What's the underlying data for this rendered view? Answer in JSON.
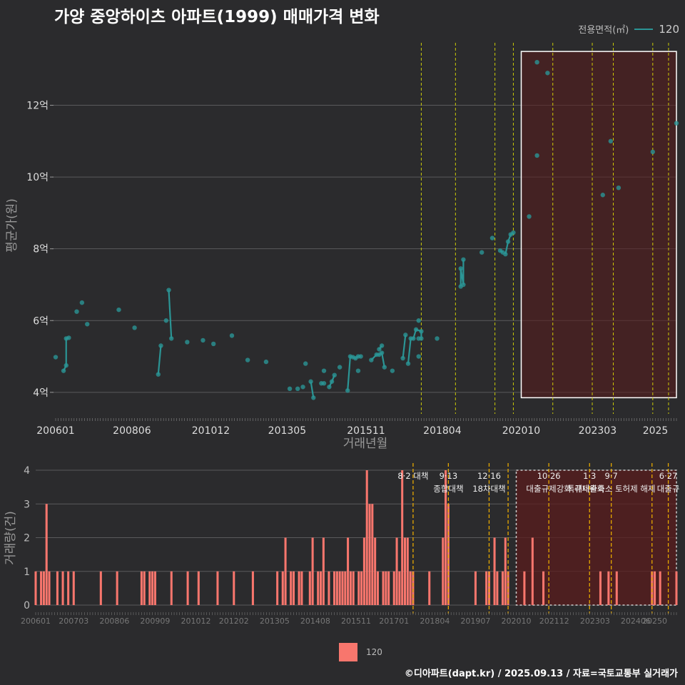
{
  "title": "가양 중앙하이츠 아파트(1999) 매매가격 변화",
  "legend": {
    "label": "전용면적(㎡)",
    "value": "120",
    "line_color": "#2b9595",
    "bar_color": "#f8766d"
  },
  "footer": "©디아파트(dapt.kr) / 2025.09.13 / 자료=국토교통부 실거래가",
  "colors": {
    "background": "#2b2b2d",
    "line": "#2b9595",
    "bar": "#f8766d",
    "policy_line": "#e6e600",
    "highlight_fill": "#5a1c1c"
  },
  "chart_data": [
    {
      "type": "line",
      "title": "가양 중앙하이츠 아파트(1999) 매매가격 변화",
      "xlabel": "거래년월",
      "ylabel": "평균가(원)",
      "x_domain": [
        "2006-01",
        "2025-09"
      ],
      "ylim": [
        3.4,
        13.9
      ],
      "x_ticks": [
        "200601",
        "200806",
        "201012",
        "201305",
        "201511",
        "201804",
        "202010",
        "202303",
        "2025"
      ],
      "y_ticks": [
        {
          "v": 4,
          "label": "4억"
        },
        {
          "v": 6,
          "label": "6억"
        },
        {
          "v": 8,
          "label": "8억"
        },
        {
          "v": 10,
          "label": "10억"
        },
        {
          "v": 12,
          "label": "12억"
        }
      ],
      "highlight_range": [
        "2020-10",
        "2025-09"
      ],
      "highlight_y": [
        3.85,
        13.5
      ],
      "policy_lines": [
        "2017-08",
        "2018-09",
        "2019-12",
        "2020-07",
        "2021-10",
        "2023-01",
        "2023-09",
        "2024-12",
        "2025-06"
      ],
      "segments": [
        [
          [
            "2006-01",
            4.98
          ]
        ],
        [
          [
            "2006-04",
            4.6
          ],
          [
            "2006-05",
            4.75
          ],
          [
            "2006-05",
            5.5
          ],
          [
            "2006-06",
            5.52
          ]
        ],
        [
          [
            "2006-09",
            6.25
          ]
        ],
        [
          [
            "2006-11",
            6.5
          ]
        ],
        [
          [
            "2007-01",
            5.9
          ]
        ],
        [
          [
            "2008-01",
            6.3
          ]
        ],
        [
          [
            "2008-07",
            5.8
          ]
        ],
        [
          [
            "2009-04",
            4.5
          ],
          [
            "2009-05",
            5.3
          ]
        ],
        [
          [
            "2009-07",
            6.0
          ]
        ],
        [
          [
            "2009-08",
            6.85
          ],
          [
            "2009-09",
            5.5
          ]
        ],
        [
          [
            "2010-03",
            5.4
          ]
        ],
        [
          [
            "2010-09",
            5.45
          ]
        ],
        [
          [
            "2011-01",
            5.35
          ]
        ],
        [
          [
            "2011-08",
            5.58
          ]
        ],
        [
          [
            "2012-02",
            4.9
          ]
        ],
        [
          [
            "2012-09",
            4.85
          ]
        ],
        [
          [
            "2013-06",
            4.1
          ]
        ],
        [
          [
            "2013-09",
            4.1
          ]
        ],
        [
          [
            "2013-11",
            4.15
          ]
        ],
        [
          [
            "2013-12",
            4.8
          ]
        ],
        [
          [
            "2014-02",
            4.3
          ],
          [
            "2014-03",
            3.85
          ]
        ],
        [
          [
            "2014-06",
            4.25
          ],
          [
            "2014-07",
            4.25
          ]
        ],
        [
          [
            "2014-07",
            4.6
          ]
        ],
        [
          [
            "2014-09",
            4.15
          ],
          [
            "2014-10",
            4.3
          ],
          [
            "2014-11",
            4.48
          ]
        ],
        [
          [
            "2015-01",
            4.7
          ]
        ],
        [
          [
            "2015-04",
            4.05
          ],
          [
            "2015-05",
            5.0
          ],
          [
            "2015-06",
            4.98
          ],
          [
            "2015-07",
            4.95
          ],
          [
            "2015-08",
            5.0
          ],
          [
            "2015-09",
            5.0
          ]
        ],
        [
          [
            "2015-08",
            4.6
          ]
        ],
        [
          [
            "2016-01",
            4.9
          ],
          [
            "2016-03",
            5.05
          ],
          [
            "2016-04",
            5.05
          ],
          [
            "2016-05",
            5.1
          ],
          [
            "2016-06",
            4.7
          ]
        ],
        [
          [
            "2016-04",
            5.2
          ],
          [
            "2016-05",
            5.3
          ]
        ],
        [
          [
            "2016-09",
            4.6
          ]
        ],
        [
          [
            "2017-01",
            4.95
          ],
          [
            "2017-02",
            5.6
          ]
        ],
        [
          [
            "2017-03",
            4.8
          ],
          [
            "2017-04",
            5.5
          ],
          [
            "2017-05",
            5.5
          ],
          [
            "2017-06",
            5.75
          ],
          [
            "2017-08",
            5.7
          ],
          [
            "2017-08",
            5.5
          ]
        ],
        [
          [
            "2017-07",
            5.5
          ]
        ],
        [
          [
            "2017-07",
            6.0
          ]
        ],
        [
          [
            "2017-07",
            5.0
          ]
        ],
        [
          [
            "2018-02",
            5.5
          ]
        ],
        [
          [
            "2018-11",
            6.95
          ],
          [
            "2018-11",
            7.45
          ],
          [
            "2018-12",
            7.0
          ],
          [
            "2018-12",
            7.7
          ]
        ],
        [
          [
            "2019-07",
            7.9
          ]
        ],
        [
          [
            "2019-11",
            8.3
          ]
        ],
        [
          [
            "2020-02",
            7.95
          ],
          [
            "2020-03",
            7.9
          ]
        ],
        [
          [
            "2020-04",
            7.85
          ],
          [
            "2020-05",
            8.2
          ],
          [
            "2020-06",
            8.4
          ],
          [
            "2020-07",
            8.45
          ]
        ],
        [
          [
            "2021-01",
            8.9
          ]
        ],
        [
          [
            "2021-04",
            13.2
          ]
        ],
        [
          [
            "2021-04",
            10.6
          ]
        ],
        [
          [
            "2021-08",
            12.9
          ]
        ],
        [
          [
            "2023-05",
            9.5
          ]
        ],
        [
          [
            "2023-08",
            11.0
          ]
        ],
        [
          [
            "2023-11",
            9.7
          ]
        ],
        [
          [
            "2024-12",
            10.7
          ]
        ],
        [
          [
            "2025-09",
            11.5
          ]
        ]
      ]
    },
    {
      "type": "bar",
      "ylabel": "거래량(건)",
      "series_name": "120",
      "ylim": [
        0,
        4
      ],
      "y_ticks": [
        0,
        1,
        2,
        3,
        4
      ],
      "x_ticks": [
        "200601",
        "200703",
        "200806",
        "200909",
        "201012",
        "201202",
        "201305",
        "201408",
        "201511",
        "201701",
        "201804",
        "201907",
        "202010",
        "202112",
        "202303",
        "202406",
        "20250"
      ],
      "highlight_range": [
        "2020-10",
        "2025-09"
      ],
      "policy_lines": [
        {
          "date": "2017-08",
          "labels": [
            "8·2 대책"
          ]
        },
        {
          "date": "2018-09",
          "labels": [
            "9·13",
            "종합대책"
          ]
        },
        {
          "date": "2019-12",
          "labels": [
            "12·16",
            "18차대책"
          ]
        },
        {
          "date": "2020-07",
          "labels": []
        },
        {
          "date": "2021-10",
          "labels": [
            "10·26",
            "대출규제강화"
          ]
        },
        {
          "date": "2023-01",
          "labels": [
            "1·3",
            "규제완화"
          ]
        },
        {
          "date": "2023-09",
          "labels": [
            "9·7",
            "특례대출축소 토허제 해제"
          ]
        },
        {
          "date": "2024-12",
          "labels": []
        },
        {
          "date": "2025-06",
          "labels": [
            "6·27",
            "대출규"
          ]
        }
      ],
      "bars": [
        [
          "2006-01",
          1
        ],
        [
          "2006-03",
          1
        ],
        [
          "2006-04",
          1
        ],
        [
          "2006-05",
          3
        ],
        [
          "2006-06",
          1
        ],
        [
          "2006-09",
          1
        ],
        [
          "2006-11",
          1
        ],
        [
          "2007-01",
          1
        ],
        [
          "2007-03",
          1
        ],
        [
          "2008-01",
          1
        ],
        [
          "2008-07",
          1
        ],
        [
          "2009-04",
          1
        ],
        [
          "2009-05",
          1
        ],
        [
          "2009-07",
          1
        ],
        [
          "2009-08",
          1
        ],
        [
          "2009-09",
          1
        ],
        [
          "2010-03",
          1
        ],
        [
          "2010-09",
          1
        ],
        [
          "2011-01",
          1
        ],
        [
          "2011-08",
          1
        ],
        [
          "2012-02",
          1
        ],
        [
          "2012-09",
          1
        ],
        [
          "2013-06",
          1
        ],
        [
          "2013-08",
          1
        ],
        [
          "2013-09",
          2
        ],
        [
          "2013-11",
          1
        ],
        [
          "2013-12",
          1
        ],
        [
          "2014-02",
          1
        ],
        [
          "2014-03",
          1
        ],
        [
          "2014-06",
          1
        ],
        [
          "2014-07",
          2
        ],
        [
          "2014-09",
          1
        ],
        [
          "2014-10",
          1
        ],
        [
          "2014-11",
          2
        ],
        [
          "2015-01",
          1
        ],
        [
          "2015-03",
          1
        ],
        [
          "2015-04",
          1
        ],
        [
          "2015-05",
          1
        ],
        [
          "2015-06",
          1
        ],
        [
          "2015-07",
          1
        ],
        [
          "2015-08",
          2
        ],
        [
          "2015-09",
          1
        ],
        [
          "2015-10",
          1
        ],
        [
          "2015-12",
          1
        ],
        [
          "2016-01",
          1
        ],
        [
          "2016-02",
          2
        ],
        [
          "2016-03",
          4
        ],
        [
          "2016-04",
          3
        ],
        [
          "2016-05",
          3
        ],
        [
          "2016-06",
          2
        ],
        [
          "2016-07",
          1
        ],
        [
          "2016-09",
          1
        ],
        [
          "2016-10",
          1
        ],
        [
          "2016-11",
          1
        ],
        [
          "2017-01",
          1
        ],
        [
          "2017-02",
          2
        ],
        [
          "2017-03",
          1
        ],
        [
          "2017-04",
          4
        ],
        [
          "2017-05",
          2
        ],
        [
          "2017-06",
          2
        ],
        [
          "2017-07",
          1
        ],
        [
          "2017-08",
          1
        ],
        [
          "2018-02",
          1
        ],
        [
          "2018-07",
          2
        ],
        [
          "2018-08",
          4
        ],
        [
          "2018-09",
          3
        ],
        [
          "2019-07",
          1
        ],
        [
          "2019-11",
          1
        ],
        [
          "2019-12",
          1
        ],
        [
          "2020-02",
          2
        ],
        [
          "2020-03",
          1
        ],
        [
          "2020-05",
          1
        ],
        [
          "2020-06",
          2
        ],
        [
          "2020-07",
          1
        ],
        [
          "2021-01",
          1
        ],
        [
          "2021-04",
          2
        ],
        [
          "2021-08",
          1
        ],
        [
          "2023-05",
          1
        ],
        [
          "2023-08",
          1
        ],
        [
          "2023-11",
          1
        ],
        [
          "2024-12",
          1
        ],
        [
          "2025-01",
          1
        ],
        [
          "2025-03",
          1
        ],
        [
          "2025-09",
          1
        ]
      ]
    }
  ]
}
